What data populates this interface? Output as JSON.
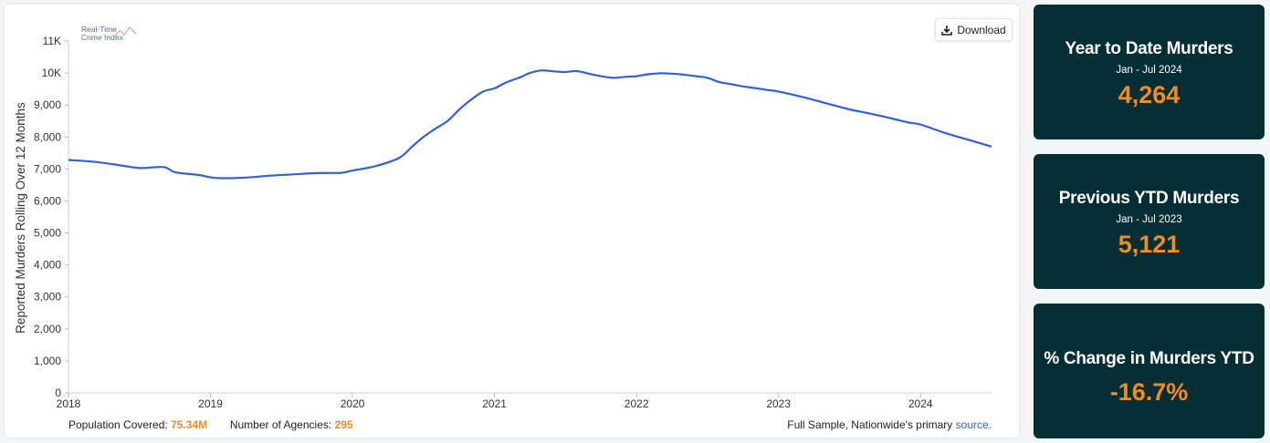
{
  "logo": {
    "line1": "Real-Time",
    "line2": "Crime Index"
  },
  "download": {
    "label": "Download",
    "icon": "download-icon"
  },
  "chart_data": {
    "type": "line",
    "title": "",
    "xlabel": "",
    "ylabel": "Reported Murders Rolling Over 12 Months",
    "xlim": [
      2018.0,
      2024.5
    ],
    "ylim": [
      0,
      11000
    ],
    "grid": false,
    "line_color": "#3060e0",
    "x_ticks": [
      "2018",
      "2019",
      "2020",
      "2021",
      "2022",
      "2023",
      "2024"
    ],
    "y_ticks": [
      "0",
      "1,000",
      "2,000",
      "3,000",
      "4,000",
      "5,000",
      "6,000",
      "7,000",
      "8,000",
      "9,000",
      "10K",
      "11K"
    ],
    "series": [
      {
        "x": [
          2018.0,
          2018.17,
          2018.33,
          2018.5,
          2018.67,
          2018.75,
          2018.92,
          2019.0,
          2019.08,
          2019.25,
          2019.42,
          2019.58,
          2019.75,
          2019.92,
          2020.0,
          2020.17,
          2020.33,
          2020.42,
          2020.5,
          2020.58,
          2020.67,
          2020.75,
          2020.83,
          2020.92,
          2021.0,
          2021.08,
          2021.17,
          2021.25,
          2021.33,
          2021.42,
          2021.5,
          2021.58,
          2021.67,
          2021.75,
          2021.83,
          2021.92,
          2022.0,
          2022.08,
          2022.17,
          2022.25,
          2022.33,
          2022.42,
          2022.5,
          2022.58,
          2022.67,
          2022.75,
          2022.83,
          2022.92,
          2023.0,
          2023.17,
          2023.33,
          2023.5,
          2023.58,
          2023.75,
          2023.92,
          2024.0,
          2024.17,
          2024.33,
          2024.5
        ],
        "y": [
          7280,
          7230,
          7140,
          7030,
          7060,
          6900,
          6810,
          6740,
          6710,
          6730,
          6790,
          6830,
          6870,
          6880,
          6950,
          7100,
          7350,
          7700,
          8000,
          8250,
          8500,
          8850,
          9150,
          9420,
          9520,
          9700,
          9850,
          10000,
          10080,
          10050,
          10030,
          10060,
          9970,
          9900,
          9850,
          9880,
          9900,
          9960,
          9990,
          9980,
          9950,
          9900,
          9850,
          9720,
          9650,
          9580,
          9530,
          9470,
          9420,
          9250,
          9060,
          8860,
          8790,
          8630,
          8450,
          8390,
          8130,
          7920,
          7700
        ]
      }
    ]
  },
  "footer": {
    "population_label": "Population Covered:",
    "population_value": "75.34M",
    "agencies_label": "Number of Agencies:",
    "agencies_value": "295",
    "source_text": "Full Sample, Nationwide's primary",
    "source_link": "source."
  },
  "stats": [
    {
      "title": "Year to Date Murders",
      "sub": "Jan - Jul 2024",
      "value": "4,264"
    },
    {
      "title": "Previous YTD Murders",
      "sub": "Jan - Jul 2023",
      "value": "5,121"
    },
    {
      "title": "% Change in Murders YTD",
      "sub": "",
      "value": "-16.7%"
    }
  ],
  "colors": {
    "accent": "#f28c1e",
    "card_bg": "#052e35",
    "line": "#3060e0"
  }
}
